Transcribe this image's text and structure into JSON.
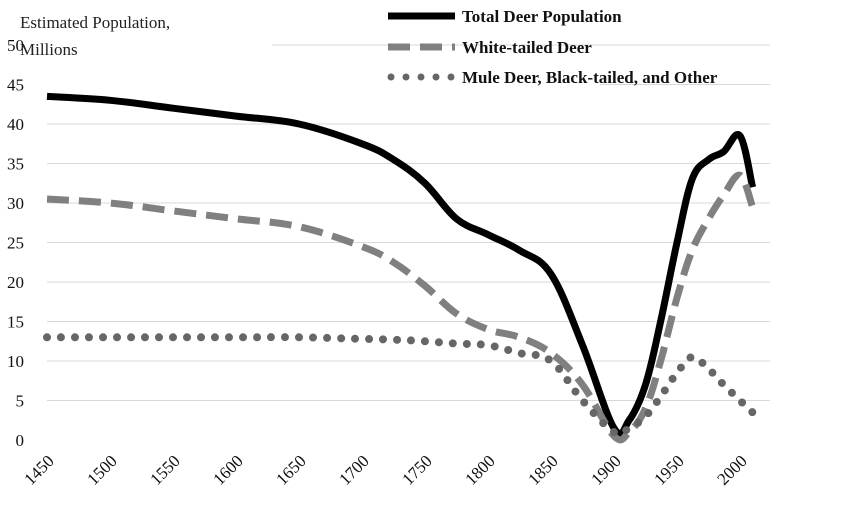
{
  "chart_data": {
    "type": "line",
    "title": "",
    "ylabel_lines": [
      "Estimated Population,",
      "Millions"
    ],
    "xlabel": "",
    "xlim": [
      1450,
      2000
    ],
    "ylim": [
      0,
      50
    ],
    "x_ticks": [
      "1450",
      "1500",
      "1550",
      "1600",
      "1650",
      "1700",
      "1750",
      "1800",
      "1850",
      "1900",
      "1950",
      "2000"
    ],
    "y_ticks": [
      "0",
      "5",
      "10",
      "15",
      "20",
      "25",
      "30",
      "35",
      "40",
      "45",
      "50"
    ],
    "grid": "horizontal",
    "legend_position": "top-right",
    "series": [
      {
        "name": "Total Deer Population",
        "style": "solid",
        "color": "#000000",
        "x": [
          1450,
          1500,
          1550,
          1600,
          1650,
          1700,
          1725,
          1750,
          1775,
          1800,
          1825,
          1850,
          1875,
          1900,
          1912,
          1925,
          1937,
          1950,
          1962,
          1975,
          1987,
          2000,
          2010
        ],
        "y": [
          43.5,
          43,
          42,
          41,
          40,
          37.5,
          35.5,
          32.5,
          28,
          26,
          24,
          21,
          12,
          1.5,
          2.5,
          7,
          15,
          25,
          33,
          35.5,
          36.5,
          38.5,
          32
        ]
      },
      {
        "name": "White-tailed Deer",
        "style": "dashed",
        "color": "#808080",
        "x": [
          1450,
          1500,
          1550,
          1600,
          1650,
          1700,
          1725,
          1750,
          1775,
          1800,
          1825,
          1850,
          1875,
          1900,
          1912,
          1925,
          1937,
          1950,
          1962,
          1975,
          1987,
          2000,
          2010
        ],
        "y": [
          30.5,
          30,
          29,
          28,
          27,
          24.5,
          22.5,
          19.5,
          16,
          14,
          13,
          11,
          7,
          0.5,
          1,
          4,
          10,
          18,
          24,
          28,
          31,
          33.5,
          29.5
        ]
      },
      {
        "name": "Mule Deer, Black-tailed, and Other",
        "style": "dotted",
        "color": "#666666",
        "x": [
          1450,
          1500,
          1550,
          1600,
          1650,
          1700,
          1725,
          1750,
          1775,
          1800,
          1825,
          1850,
          1875,
          1900,
          1912,
          1925,
          1937,
          1950,
          1962,
          1975,
          1987,
          2000,
          2010
        ],
        "y": [
          13,
          13,
          13,
          13,
          13,
          12.8,
          12.7,
          12.5,
          12.2,
          12,
          11,
          10,
          5,
          1,
          1.5,
          3,
          5.5,
          8.5,
          10.5,
          9,
          7,
          5,
          3.5
        ]
      }
    ]
  }
}
